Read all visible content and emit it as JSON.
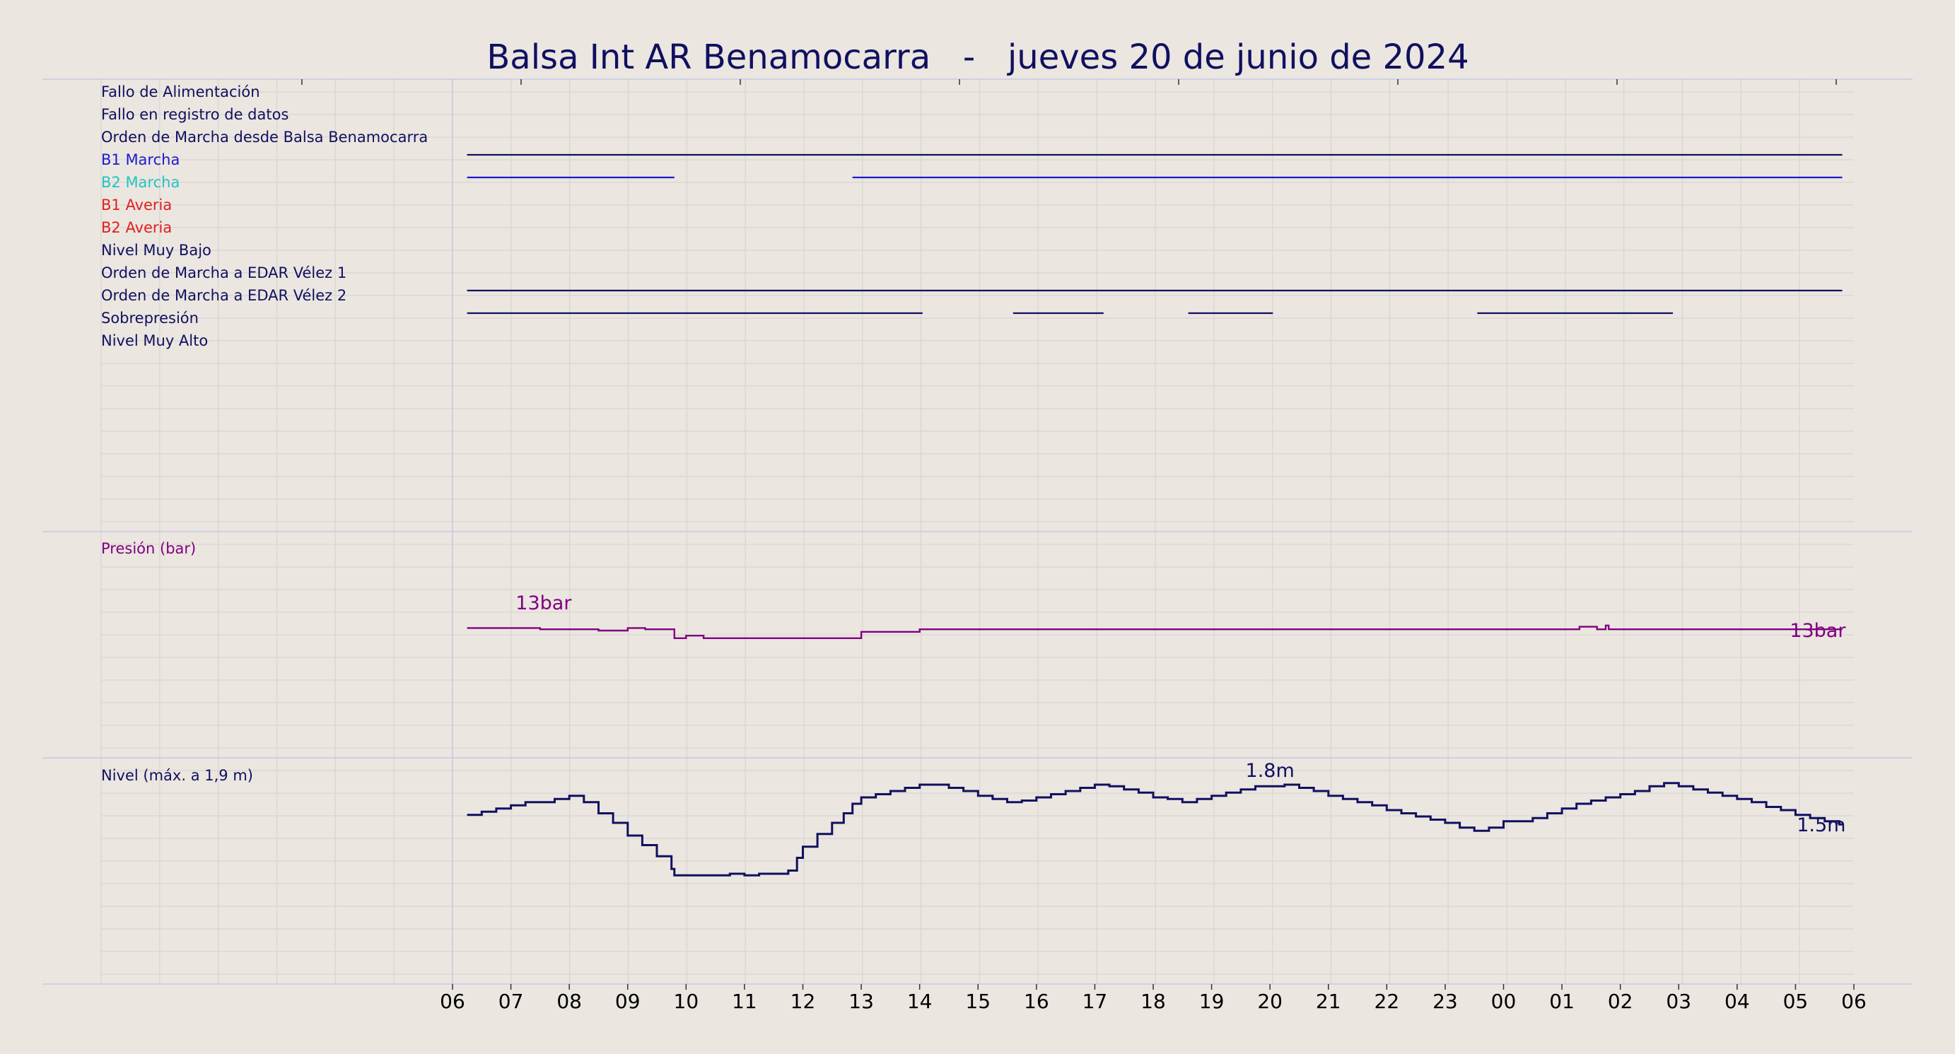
{
  "chart_data": {
    "type": "line",
    "title": "Balsa Int AR Benamocarra   -   jueves 20 de junio de 2024",
    "x_tick_labels": [
      "06",
      "07",
      "08",
      "09",
      "10",
      "11",
      "12",
      "13",
      "14",
      "15",
      "16",
      "17",
      "18",
      "19",
      "20",
      "21",
      "22",
      "23",
      "00",
      "01",
      "02",
      "03",
      "04",
      "05",
      "06"
    ],
    "x_range_hours": [
      6,
      30
    ],
    "grid": true,
    "colors": {
      "background": "#ebe6e0",
      "grid": "#dcd7d3",
      "frame": "#c8c8e6",
      "dark_navy": "#101060",
      "blue": "#1c1ccc",
      "cyan": "#22c4c4",
      "red": "#e02020",
      "purple": "#800080"
    },
    "signals": [
      {
        "label": "Fallo de Alimentación",
        "color": "#101060",
        "on_intervals": []
      },
      {
        "label": "Fallo en registro de datos",
        "color": "#101060",
        "on_intervals": []
      },
      {
        "label": "Orden de Marcha desde Balsa Benamocarra",
        "color": "#101060",
        "on_intervals": [
          [
            6.25,
            29.8
          ]
        ]
      },
      {
        "label": "B1 Marcha",
        "color": "#1c1ccc",
        "on_intervals": [
          [
            6.25,
            9.8
          ],
          [
            12.85,
            29.8
          ]
        ]
      },
      {
        "label": "B2 Marcha",
        "color": "#22c4c4",
        "on_intervals": []
      },
      {
        "label": "B1 Averia",
        "color": "#e02020",
        "on_intervals": []
      },
      {
        "label": "B2 Averia",
        "color": "#e02020",
        "on_intervals": []
      },
      {
        "label": "Nivel Muy Bajo",
        "color": "#101060",
        "on_intervals": []
      },
      {
        "label": "Orden de Marcha a EDAR Vélez 1",
        "color": "#101060",
        "on_intervals": [
          [
            6.25,
            29.8
          ]
        ]
      },
      {
        "label": "Orden de Marcha a EDAR Vélez 2",
        "color": "#101060",
        "on_intervals": [
          [
            6.25,
            14.05
          ],
          [
            15.6,
            17.15
          ],
          [
            18.6,
            20.05
          ],
          [
            23.55,
            26.9
          ]
        ]
      },
      {
        "label": "Sobrepresión",
        "color": "#101060",
        "on_intervals": []
      },
      {
        "label": "Nivel Muy Alto",
        "color": "#101060",
        "on_intervals": []
      }
    ],
    "pressure": {
      "label": "Presión (bar)",
      "color": "#800080",
      "ylim": [
        0,
        20
      ],
      "annotations": [
        {
          "text": "13bar",
          "x": 7.5,
          "y": 13
        },
        {
          "text": "13bar",
          "x": 29.8,
          "y": 13
        }
      ],
      "points": [
        [
          6.25,
          13.1
        ],
        [
          7.0,
          13.1
        ],
        [
          7.5,
          13.05
        ],
        [
          8.0,
          13.05
        ],
        [
          8.5,
          13.0
        ],
        [
          9.0,
          13.1
        ],
        [
          9.3,
          13.05
        ],
        [
          9.8,
          12.7
        ],
        [
          10.0,
          12.8
        ],
        [
          10.3,
          12.7
        ],
        [
          12.85,
          12.7
        ],
        [
          13.0,
          12.95
        ],
        [
          14.0,
          13.05
        ],
        [
          16.0,
          13.05
        ],
        [
          20.0,
          13.05
        ],
        [
          25.0,
          13.05
        ],
        [
          25.3,
          13.15
        ],
        [
          25.6,
          13.05
        ],
        [
          25.75,
          13.2
        ],
        [
          25.8,
          13.05
        ],
        [
          29.8,
          13.05
        ]
      ]
    },
    "level": {
      "label": "Nivel (máx. a 1,9 m)",
      "color": "#101060",
      "ylim": [
        0,
        2.0
      ],
      "annotations": [
        {
          "text": "1.8m",
          "x": 20.0,
          "y": 1.8
        },
        {
          "text": "1.5m",
          "x": 29.8,
          "y": 1.5
        }
      ],
      "points": [
        [
          6.25,
          1.57
        ],
        [
          6.5,
          1.59
        ],
        [
          6.75,
          1.61
        ],
        [
          7.0,
          1.63
        ],
        [
          7.25,
          1.65
        ],
        [
          7.75,
          1.67
        ],
        [
          8.0,
          1.69
        ],
        [
          8.25,
          1.65
        ],
        [
          8.5,
          1.58
        ],
        [
          8.75,
          1.52
        ],
        [
          9.0,
          1.44
        ],
        [
          9.25,
          1.38
        ],
        [
          9.5,
          1.31
        ],
        [
          9.75,
          1.23
        ],
        [
          9.8,
          1.19
        ],
        [
          10.5,
          1.19
        ],
        [
          10.75,
          1.2
        ],
        [
          11.0,
          1.19
        ],
        [
          11.25,
          1.2
        ],
        [
          11.5,
          1.2
        ],
        [
          11.75,
          1.22
        ],
        [
          11.9,
          1.3
        ],
        [
          12.0,
          1.37
        ],
        [
          12.25,
          1.45
        ],
        [
          12.5,
          1.52
        ],
        [
          12.7,
          1.58
        ],
        [
          12.85,
          1.64
        ],
        [
          13.0,
          1.68
        ],
        [
          13.25,
          1.7
        ],
        [
          13.5,
          1.72
        ],
        [
          13.75,
          1.74
        ],
        [
          14.0,
          1.76
        ],
        [
          14.25,
          1.76
        ],
        [
          14.5,
          1.74
        ],
        [
          14.75,
          1.72
        ],
        [
          15.0,
          1.69
        ],
        [
          15.25,
          1.67
        ],
        [
          15.5,
          1.65
        ],
        [
          15.75,
          1.66
        ],
        [
          16.0,
          1.68
        ],
        [
          16.25,
          1.7
        ],
        [
          16.5,
          1.72
        ],
        [
          16.75,
          1.74
        ],
        [
          17.0,
          1.76
        ],
        [
          17.25,
          1.75
        ],
        [
          17.5,
          1.73
        ],
        [
          17.75,
          1.71
        ],
        [
          18.0,
          1.68
        ],
        [
          18.25,
          1.67
        ],
        [
          18.5,
          1.65
        ],
        [
          18.75,
          1.67
        ],
        [
          19.0,
          1.69
        ],
        [
          19.25,
          1.71
        ],
        [
          19.5,
          1.73
        ],
        [
          19.75,
          1.75
        ],
        [
          20.25,
          1.76
        ],
        [
          20.5,
          1.74
        ],
        [
          20.75,
          1.72
        ],
        [
          21.0,
          1.69
        ],
        [
          21.25,
          1.67
        ],
        [
          21.5,
          1.65
        ],
        [
          21.75,
          1.63
        ],
        [
          22.0,
          1.6
        ],
        [
          22.25,
          1.58
        ],
        [
          22.5,
          1.56
        ],
        [
          22.75,
          1.54
        ],
        [
          23.0,
          1.52
        ],
        [
          23.25,
          1.49
        ],
        [
          23.5,
          1.47
        ],
        [
          23.75,
          1.49
        ],
        [
          24.0,
          1.53
        ],
        [
          24.5,
          1.55
        ],
        [
          24.75,
          1.58
        ],
        [
          25.0,
          1.61
        ],
        [
          25.25,
          1.64
        ],
        [
          25.5,
          1.66
        ],
        [
          25.75,
          1.68
        ],
        [
          26.0,
          1.7
        ],
        [
          26.25,
          1.72
        ],
        [
          26.5,
          1.75
        ],
        [
          26.75,
          1.77
        ],
        [
          27.0,
          1.75
        ],
        [
          27.25,
          1.73
        ],
        [
          27.5,
          1.71
        ],
        [
          27.75,
          1.69
        ],
        [
          28.0,
          1.67
        ],
        [
          28.25,
          1.65
        ],
        [
          28.5,
          1.62
        ],
        [
          28.75,
          1.6
        ],
        [
          29.0,
          1.57
        ],
        [
          29.25,
          1.55
        ],
        [
          29.5,
          1.53
        ],
        [
          29.75,
          1.51
        ],
        [
          29.8,
          1.51
        ]
      ]
    }
  }
}
